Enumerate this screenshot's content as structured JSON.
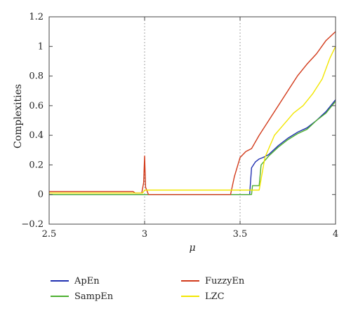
{
  "chart_data": {
    "type": "line",
    "xlabel": "μ",
    "ylabel": "Complexities",
    "xlim": [
      2.5,
      4.0
    ],
    "ylim": [
      -0.2,
      1.2
    ],
    "x_ticks": [
      "2.5",
      "3",
      "3.5",
      "4"
    ],
    "y_ticks": [
      "−0.2",
      "0",
      "0.2",
      "0.4",
      "0.6",
      "0.8",
      "1",
      "1.2"
    ],
    "grid": "dotted vertical lines at x = 3 and 3.5",
    "legend_position": "bottom",
    "series": [
      {
        "name": "ApEn",
        "color": "#1f2fb0",
        "points": [
          [
            2.5,
            0.0
          ],
          [
            3.55,
            0.0
          ],
          [
            3.56,
            0.18
          ],
          [
            3.58,
            0.22
          ],
          [
            3.6,
            0.24
          ],
          [
            3.62,
            0.25
          ],
          [
            3.65,
            0.27
          ],
          [
            3.7,
            0.33
          ],
          [
            3.75,
            0.38
          ],
          [
            3.8,
            0.42
          ],
          [
            3.85,
            0.45
          ],
          [
            3.9,
            0.5
          ],
          [
            3.95,
            0.56
          ],
          [
            4.0,
            0.64
          ]
        ]
      },
      {
        "name": "SampEn",
        "color": "#4caf2f",
        "points": [
          [
            2.5,
            0.0
          ],
          [
            3.56,
            0.0
          ],
          [
            3.565,
            0.06
          ],
          [
            3.6,
            0.06
          ],
          [
            3.61,
            0.2
          ],
          [
            3.65,
            0.26
          ],
          [
            3.7,
            0.32
          ],
          [
            3.75,
            0.37
          ],
          [
            3.8,
            0.41
          ],
          [
            3.85,
            0.44
          ],
          [
            3.9,
            0.5
          ],
          [
            3.95,
            0.55
          ],
          [
            4.0,
            0.63
          ]
        ]
      },
      {
        "name": "FuzzyEn",
        "color": "#d23a1a",
        "points": [
          [
            2.5,
            0.02
          ],
          [
            2.94,
            0.02
          ],
          [
            2.95,
            0.01
          ],
          [
            2.985,
            0.01
          ],
          [
            2.995,
            0.08
          ],
          [
            3.0,
            0.26
          ],
          [
            3.005,
            0.05
          ],
          [
            3.02,
            0.0
          ],
          [
            3.45,
            0.0
          ],
          [
            3.47,
            0.12
          ],
          [
            3.5,
            0.25
          ],
          [
            3.53,
            0.29
          ],
          [
            3.56,
            0.31
          ],
          [
            3.6,
            0.4
          ],
          [
            3.65,
            0.5
          ],
          [
            3.7,
            0.6
          ],
          [
            3.75,
            0.7
          ],
          [
            3.8,
            0.8
          ],
          [
            3.85,
            0.88
          ],
          [
            3.9,
            0.95
          ],
          [
            3.95,
            1.04
          ],
          [
            4.0,
            1.1
          ]
        ]
      },
      {
        "name": "LZC",
        "color": "#f2e600",
        "points": [
          [
            2.5,
            0.01
          ],
          [
            2.99,
            0.01
          ],
          [
            3.0,
            0.03
          ],
          [
            3.56,
            0.03
          ],
          [
            3.6,
            0.03
          ],
          [
            3.63,
            0.25
          ],
          [
            3.68,
            0.4
          ],
          [
            3.72,
            0.46
          ],
          [
            3.78,
            0.55
          ],
          [
            3.83,
            0.6
          ],
          [
            3.88,
            0.68
          ],
          [
            3.93,
            0.78
          ],
          [
            3.97,
            0.92
          ],
          [
            4.0,
            1.0
          ]
        ]
      }
    ]
  }
}
